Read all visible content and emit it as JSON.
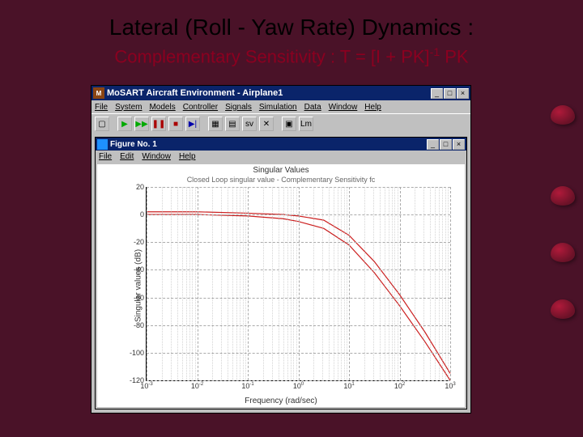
{
  "slide": {
    "title": "Lateral (Roll - Yaw Rate) Dynamics :",
    "subtitle_pre": "Complementary Sensitivity : T = [I + PK]",
    "subtitle_sup": "-1",
    "subtitle_post": " PK",
    "background": "#4a1228",
    "title_color": "#000000",
    "subtitle_color": "#8b0020"
  },
  "outer_window": {
    "icon_text": "M",
    "title": "MoSART Aircraft Environment - Airplane1",
    "menus": [
      "File",
      "System",
      "Models",
      "Controller",
      "Signals",
      "Simulation",
      "Data",
      "Window",
      "Help"
    ],
    "toolbar_buttons": [
      {
        "name": "open-icon",
        "glyph": "▢"
      },
      {
        "name": "play-icon",
        "glyph": "▶",
        "class": "play"
      },
      {
        "name": "play2-icon",
        "glyph": "▶▶",
        "class": "play"
      },
      {
        "name": "pause-icon",
        "glyph": "❚❚",
        "class": "pause"
      },
      {
        "name": "stop-icon",
        "glyph": "■",
        "class": "stop"
      },
      {
        "name": "step-icon",
        "glyph": "▶|",
        "class": "step"
      },
      {
        "name": "grid1-icon",
        "glyph": "▦"
      },
      {
        "name": "grid2-icon",
        "glyph": "▤"
      },
      {
        "name": "sv-icon",
        "glyph": "sv"
      },
      {
        "name": "bk-icon",
        "glyph": "✕"
      },
      {
        "name": "xtra1-icon",
        "glyph": "▣"
      },
      {
        "name": "lm-icon",
        "glyph": "Lm"
      }
    ],
    "win_buttons": [
      "_",
      "□",
      "×"
    ]
  },
  "figure": {
    "title": "Figure No. 1",
    "menus": [
      "File",
      "Edit",
      "Window",
      "Help"
    ],
    "win_buttons": [
      "_",
      "□",
      "×"
    ]
  },
  "chart": {
    "type": "line",
    "plot_title": "Singular Values",
    "plot_subtitle": "Closed Loop singular value - Complementary Sensitivity fc",
    "xlabel": "Frequency (rad/sec)",
    "ylabel": "Singular values (dB)",
    "xscale": "log",
    "xlim_exp": [
      -3,
      3
    ],
    "ylim": [
      -120,
      20
    ],
    "ytick_step": 20,
    "yticks": [
      20,
      0,
      -20,
      -40,
      -60,
      -80,
      -100,
      -120
    ],
    "xticks_exp": [
      -3,
      -2,
      -1,
      0,
      1,
      2,
      3
    ],
    "background_color": "#ffffff",
    "grid_color": "#aaaaaa",
    "series": [
      {
        "name": "sv1",
        "color": "#cc2020",
        "points_logx_db": [
          [
            -3,
            2
          ],
          [
            -2,
            2
          ],
          [
            -1,
            1
          ],
          [
            -0.3,
            0
          ],
          [
            0,
            -1
          ],
          [
            0.5,
            -4
          ],
          [
            1,
            -15
          ],
          [
            1.5,
            -34
          ],
          [
            2,
            -58
          ],
          [
            2.5,
            -85
          ],
          [
            3,
            -115
          ]
        ]
      },
      {
        "name": "sv2",
        "color": "#cc2020",
        "points_logx_db": [
          [
            -3,
            0
          ],
          [
            -2,
            0
          ],
          [
            -1,
            -1
          ],
          [
            -0.3,
            -3
          ],
          [
            0,
            -5
          ],
          [
            0.5,
            -10
          ],
          [
            1,
            -22
          ],
          [
            1.5,
            -42
          ],
          [
            2,
            -66
          ],
          [
            2.5,
            -92
          ],
          [
            3,
            -120
          ]
        ]
      }
    ],
    "line_width": 1.2
  }
}
